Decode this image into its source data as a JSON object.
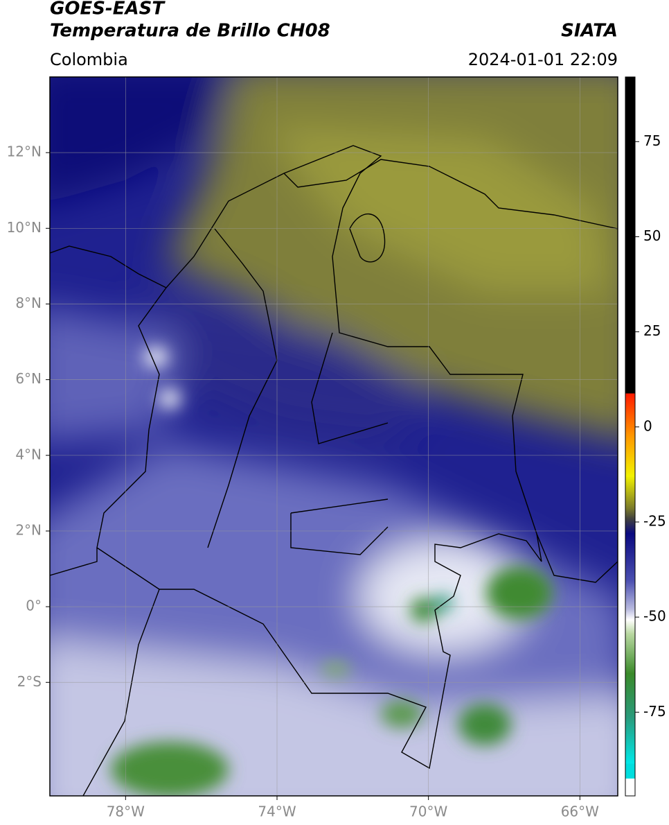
{
  "header": {
    "title": "GOES-EAST",
    "subtitle": "Temperatura de Brillo CH08",
    "source": "SIATA",
    "region": "Colombia",
    "datetime": "2024-01-01 22:09"
  },
  "map": {
    "xlim": [
      -80,
      -65
    ],
    "ylim": [
      -5,
      14
    ],
    "xticks": [
      {
        "value": -78,
        "label": "78°W"
      },
      {
        "value": -74,
        "label": "74°W"
      },
      {
        "value": -70,
        "label": "70°W"
      },
      {
        "value": -66,
        "label": "66°W"
      }
    ],
    "yticks": [
      {
        "value": 12,
        "label": "12°N"
      },
      {
        "value": 10,
        "label": "10°N"
      },
      {
        "value": 8,
        "label": "8°N"
      },
      {
        "value": 6,
        "label": "6°N"
      },
      {
        "value": 4,
        "label": "4°N"
      },
      {
        "value": 2,
        "label": "2°N"
      },
      {
        "value": 0,
        "label": "0°"
      },
      {
        "value": -2,
        "label": "2°S"
      }
    ],
    "grid": true
  },
  "colorbar": {
    "lim": [
      -97,
      92
    ],
    "ticks": [
      -75,
      -50,
      -25,
      0,
      25,
      50,
      75
    ]
  }
}
